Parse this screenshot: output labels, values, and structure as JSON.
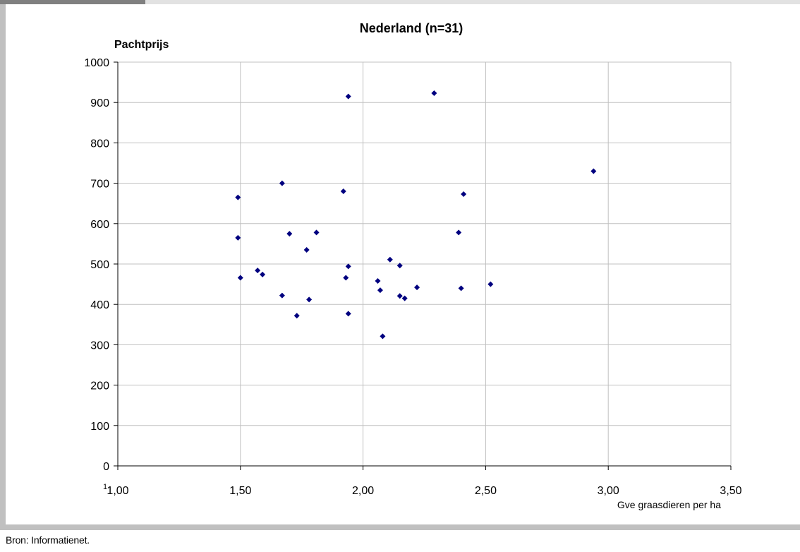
{
  "chart_data": {
    "type": "scatter",
    "title": "Nederland (n=31)",
    "ylabel": "Pachtprijs",
    "xlabel": "Gve graasdieren per ha",
    "xlim": [
      1.0,
      3.5
    ],
    "ylim": [
      0,
      1000
    ],
    "x_ticks": [
      1.0,
      1.5,
      2.0,
      2.5,
      3.0,
      3.5
    ],
    "x_tick_labels": [
      "1,00",
      "1,50",
      "2,00",
      "2,50",
      "3,00",
      "3,50"
    ],
    "y_ticks": [
      0,
      100,
      200,
      300,
      400,
      500,
      600,
      700,
      800,
      900,
      1000
    ],
    "y_tick_labels": [
      "0",
      "100",
      "200",
      "300",
      "400",
      "500",
      "600",
      "700",
      "800",
      "900",
      "1000"
    ],
    "grid": true,
    "marker_color": "#00007f",
    "points": [
      {
        "x": 1.49,
        "y": 665
      },
      {
        "x": 1.49,
        "y": 565
      },
      {
        "x": 1.5,
        "y": 466
      },
      {
        "x": 1.57,
        "y": 484
      },
      {
        "x": 1.59,
        "y": 474
      },
      {
        "x": 1.67,
        "y": 700
      },
      {
        "x": 1.67,
        "y": 422
      },
      {
        "x": 1.7,
        "y": 575
      },
      {
        "x": 1.73,
        "y": 372
      },
      {
        "x": 1.77,
        "y": 535
      },
      {
        "x": 1.78,
        "y": 412
      },
      {
        "x": 1.81,
        "y": 578
      },
      {
        "x": 1.92,
        "y": 680
      },
      {
        "x": 1.93,
        "y": 466
      },
      {
        "x": 1.94,
        "y": 915
      },
      {
        "x": 1.94,
        "y": 494
      },
      {
        "x": 1.94,
        "y": 377
      },
      {
        "x": 2.06,
        "y": 458
      },
      {
        "x": 2.07,
        "y": 435
      },
      {
        "x": 2.08,
        "y": 321
      },
      {
        "x": 2.11,
        "y": 511
      },
      {
        "x": 2.15,
        "y": 496
      },
      {
        "x": 2.15,
        "y": 421
      },
      {
        "x": 2.17,
        "y": 415
      },
      {
        "x": 2.22,
        "y": 442
      },
      {
        "x": 2.29,
        "y": 923
      },
      {
        "x": 2.39,
        "y": 578
      },
      {
        "x": 2.4,
        "y": 440
      },
      {
        "x": 2.41,
        "y": 673
      },
      {
        "x": 2.52,
        "y": 450
      },
      {
        "x": 2.94,
        "y": 730
      }
    ]
  },
  "footer": {
    "source": "Bron: Informatienet."
  },
  "stray_mark": "1"
}
